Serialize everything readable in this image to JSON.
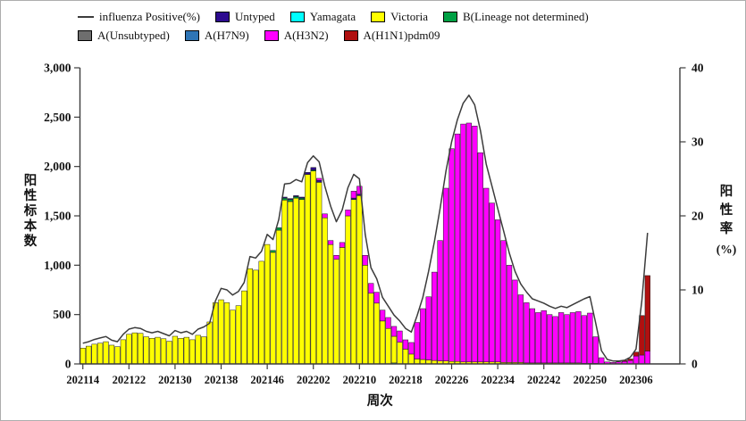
{
  "legend": {
    "row1": [
      {
        "key": "line",
        "label": "influenza Positive(%)"
      },
      {
        "key": "untyped",
        "label": "Untyped"
      },
      {
        "key": "yamagata",
        "label": "Yamagata"
      },
      {
        "key": "victoria",
        "label": "Victoria"
      },
      {
        "key": "b_nd",
        "label": "B(Lineage not determined)"
      }
    ],
    "row2": [
      {
        "key": "a_unsubtyped",
        "label": "A(Unsubtyped)"
      },
      {
        "key": "h7n9",
        "label": "A(H7N9)"
      },
      {
        "key": "h3n2",
        "label": "A(H3N2)"
      },
      {
        "key": "h1n1",
        "label": "A(H1N1)pdm09"
      }
    ]
  },
  "axes": {
    "left": {
      "title": "阳性标本数",
      "ticks": [
        0,
        500,
        1000,
        1500,
        2000,
        2500,
        3000
      ],
      "tick_labels": [
        "0",
        "500",
        "1,000",
        "1,500",
        "2,000",
        "2,500",
        "3,000"
      ]
    },
    "right": {
      "title_chars": [
        "阳",
        "性",
        "率"
      ],
      "title_unit": "(%)",
      "ticks": [
        0,
        10,
        20,
        30,
        40
      ],
      "tick_labels": [
        "0",
        "10",
        "20",
        "30",
        "40"
      ]
    },
    "x": {
      "title": "周次",
      "tick_indices": [
        0,
        8,
        16,
        24,
        32,
        40,
        48,
        56,
        64,
        72,
        80,
        88,
        96
      ],
      "tick_labels": [
        "202114",
        "202122",
        "202130",
        "202138",
        "202146",
        "202202",
        "202210",
        "202218",
        "202226",
        "202234",
        "202242",
        "202250",
        "202306"
      ]
    }
  },
  "chart_data": {
    "type": "combo_stacked_bar_line",
    "title": "",
    "xlabel": "周次",
    "ylabel_left": "阳性标本数",
    "ylabel_right": "阳性率(%)",
    "ylim_left": [
      0,
      3000
    ],
    "ylim_right": [
      0,
      40
    ],
    "grid": false,
    "legend_position": "top-left",
    "x_weeks": [
      "202114",
      "202115",
      "202116",
      "202117",
      "202118",
      "202119",
      "202120",
      "202121",
      "202122",
      "202123",
      "202124",
      "202125",
      "202126",
      "202127",
      "202128",
      "202129",
      "202130",
      "202131",
      "202132",
      "202133",
      "202134",
      "202135",
      "202136",
      "202137",
      "202138",
      "202139",
      "202140",
      "202141",
      "202142",
      "202143",
      "202144",
      "202145",
      "202146",
      "202147",
      "202148",
      "202149",
      "202150",
      "202151",
      "202152",
      "202201",
      "202202",
      "202203",
      "202204",
      "202205",
      "202206",
      "202207",
      "202208",
      "202209",
      "202210",
      "202211",
      "202212",
      "202213",
      "202214",
      "202215",
      "202216",
      "202217",
      "202218",
      "202219",
      "202220",
      "202221",
      "202222",
      "202223",
      "202224",
      "202225",
      "202226",
      "202227",
      "202228",
      "202229",
      "202230",
      "202231",
      "202232",
      "202233",
      "202234",
      "202235",
      "202236",
      "202237",
      "202238",
      "202239",
      "202240",
      "202241",
      "202242",
      "202243",
      "202244",
      "202245",
      "202246",
      "202247",
      "202248",
      "202249",
      "202250",
      "202251",
      "202252",
      "202301",
      "202302",
      "202303",
      "202304",
      "202305",
      "202306",
      "202307",
      "202308"
    ],
    "bar_series": [
      {
        "key": "yamagata",
        "name": "Yamagata",
        "color": "#00FFFF",
        "values": [
          0,
          0,
          0,
          0,
          0,
          0,
          0,
          0,
          0,
          0,
          0,
          0,
          0,
          0,
          0,
          0,
          0,
          0,
          0,
          0,
          0,
          0,
          0,
          0,
          0,
          0,
          0,
          0,
          0,
          0,
          0,
          0,
          0,
          0,
          0,
          0,
          0,
          0,
          0,
          0,
          0,
          0,
          0,
          0,
          0,
          0,
          0,
          0,
          0,
          0,
          0,
          0,
          0,
          0,
          10,
          0,
          0,
          0,
          0,
          0,
          0,
          0,
          0,
          0,
          0,
          0,
          0,
          0,
          0,
          0,
          0,
          0,
          0,
          0,
          0,
          0,
          0,
          0,
          0,
          0,
          0,
          0,
          0,
          0,
          0,
          0,
          0,
          0,
          0,
          0,
          0,
          0,
          0,
          0,
          0,
          0,
          0,
          0,
          0
        ]
      },
      {
        "key": "victoria",
        "name": "Victoria",
        "color": "#FFFF00",
        "values": [
          160,
          180,
          200,
          210,
          225,
          190,
          175,
          245,
          300,
          315,
          310,
          275,
          260,
          270,
          255,
          230,
          280,
          260,
          270,
          245,
          290,
          275,
          425,
          620,
          650,
          620,
          545,
          590,
          740,
          965,
          950,
          1040,
          1210,
          1130,
          1355,
          1660,
          1645,
          1680,
          1665,
          1920,
          1955,
          1840,
          1480,
          1210,
          1060,
          1180,
          1500,
          1665,
          1705,
          1000,
          716,
          616,
          435,
          360,
          270,
          220,
          150,
          100,
          50,
          45,
          40,
          35,
          30,
          30,
          25,
          25,
          20,
          20,
          20,
          20,
          20,
          20,
          20,
          15,
          15,
          15,
          15,
          10,
          10,
          10,
          10,
          10,
          10,
          10,
          10,
          10,
          10,
          5,
          5,
          5,
          0,
          0,
          0,
          0,
          0,
          0,
          0,
          0,
          0
        ]
      },
      {
        "key": "b_nd",
        "name": "B(Lineage not determined)",
        "color": "#00A044",
        "values": [
          0,
          0,
          0,
          0,
          0,
          0,
          0,
          0,
          0,
          0,
          0,
          0,
          0,
          0,
          0,
          0,
          0,
          0,
          0,
          0,
          0,
          0,
          0,
          0,
          0,
          0,
          0,
          0,
          0,
          0,
          0,
          0,
          0,
          20,
          25,
          20,
          20,
          15,
          15,
          0,
          10,
          0,
          0,
          0,
          0,
          0,
          0,
          0,
          0,
          0,
          0,
          0,
          0,
          0,
          0,
          0,
          0,
          0,
          0,
          0,
          0,
          0,
          0,
          0,
          0,
          0,
          0,
          0,
          0,
          0,
          0,
          0,
          0,
          0,
          0,
          0,
          0,
          0,
          0,
          0,
          0,
          0,
          0,
          0,
          0,
          0,
          0,
          0,
          0,
          0,
          0,
          0,
          0,
          0,
          0,
          0,
          0,
          0,
          0
        ]
      },
      {
        "key": "untyped",
        "name": "Untyped",
        "color": "#2D0B8F",
        "values": [
          0,
          0,
          0,
          0,
          0,
          0,
          0,
          0,
          0,
          0,
          0,
          0,
          0,
          0,
          0,
          0,
          0,
          0,
          0,
          0,
          0,
          0,
          0,
          0,
          0,
          0,
          0,
          0,
          0,
          0,
          0,
          0,
          0,
          0,
          0,
          10,
          10,
          10,
          10,
          20,
          25,
          20,
          0,
          0,
          0,
          0,
          0,
          15,
          15,
          0,
          0,
          0,
          0,
          0,
          0,
          0,
          0,
          0,
          0,
          0,
          0,
          0,
          0,
          0,
          0,
          0,
          0,
          0,
          0,
          0,
          0,
          0,
          0,
          0,
          0,
          0,
          0,
          0,
          0,
          0,
          0,
          0,
          0,
          0,
          0,
          0,
          0,
          0,
          0,
          0,
          0,
          0,
          0,
          0,
          0,
          0,
          0,
          0,
          0
        ]
      },
      {
        "key": "a_unsubtyped",
        "name": "A(Unsubtyped)",
        "color": "#6E6E6E",
        "values": [
          0,
          0,
          0,
          0,
          0,
          0,
          0,
          0,
          0,
          0,
          0,
          0,
          0,
          0,
          0,
          0,
          0,
          0,
          0,
          0,
          0,
          0,
          0,
          0,
          0,
          0,
          0,
          0,
          0,
          0,
          0,
          0,
          0,
          0,
          0,
          0,
          0,
          0,
          0,
          0,
          0,
          0,
          0,
          0,
          0,
          0,
          0,
          0,
          0,
          0,
          0,
          0,
          0,
          0,
          0,
          0,
          0,
          0,
          0,
          0,
          0,
          0,
          0,
          0,
          0,
          0,
          0,
          0,
          0,
          0,
          0,
          0,
          0,
          0,
          0,
          0,
          0,
          0,
          0,
          0,
          0,
          0,
          0,
          0,
          0,
          0,
          0,
          0,
          0,
          0,
          0,
          0,
          0,
          0,
          0,
          0,
          0,
          0,
          0
        ]
      },
      {
        "key": "h7n9",
        "name": "A(H7N9)",
        "color": "#2E75B6",
        "values": [
          0,
          0,
          0,
          0,
          0,
          0,
          0,
          0,
          0,
          0,
          0,
          0,
          0,
          0,
          0,
          0,
          0,
          0,
          0,
          0,
          0,
          0,
          0,
          0,
          0,
          0,
          0,
          0,
          0,
          0,
          0,
          0,
          0,
          0,
          0,
          0,
          0,
          0,
          0,
          0,
          0,
          0,
          0,
          0,
          0,
          0,
          0,
          0,
          0,
          0,
          0,
          0,
          0,
          0,
          0,
          0,
          0,
          0,
          0,
          0,
          0,
          0,
          0,
          0,
          0,
          0,
          0,
          0,
          0,
          0,
          0,
          0,
          0,
          0,
          0,
          0,
          0,
          0,
          0,
          0,
          0,
          0,
          0,
          0,
          0,
          0,
          0,
          0,
          0,
          0,
          0,
          0,
          0,
          0,
          0,
          0,
          0,
          0,
          0
        ]
      },
      {
        "key": "h3n2",
        "name": "A(H3N2)",
        "color": "#FF00FF",
        "values": [
          0,
          0,
          0,
          0,
          0,
          0,
          0,
          0,
          0,
          0,
          0,
          0,
          0,
          0,
          0,
          0,
          0,
          0,
          0,
          0,
          0,
          0,
          0,
          0,
          0,
          0,
          0,
          0,
          0,
          0,
          0,
          0,
          0,
          0,
          0,
          0,
          0,
          0,
          0,
          0,
          0,
          20,
          40,
          40,
          40,
          50,
          60,
          70,
          80,
          100,
          100,
          110,
          110,
          110,
          100,
          114,
          94,
          117,
          370,
          515,
          640,
          895,
          1220,
          1750,
          2155,
          2305,
          2410,
          2420,
          2390,
          2120,
          1760,
          1610,
          1440,
          1235,
          985,
          835,
          685,
          610,
          550,
          510,
          530,
          490,
          470,
          510,
          490,
          510,
          520,
          485,
          510,
          270,
          63,
          20,
          15,
          20,
          25,
          35,
          80,
          90,
          130
        ]
      },
      {
        "key": "h1n1",
        "name": "A(H1N1)pdm09",
        "color": "#B01010",
        "values": [
          0,
          0,
          0,
          0,
          0,
          0,
          0,
          0,
          0,
          0,
          0,
          0,
          0,
          0,
          0,
          0,
          0,
          0,
          0,
          0,
          0,
          0,
          0,
          0,
          0,
          0,
          0,
          0,
          0,
          0,
          0,
          0,
          0,
          0,
          0,
          0,
          0,
          0,
          0,
          0,
          0,
          0,
          0,
          0,
          0,
          0,
          0,
          0,
          0,
          0,
          0,
          0,
          0,
          0,
          0,
          0,
          0,
          0,
          0,
          0,
          0,
          0,
          0,
          0,
          0,
          0,
          0,
          0,
          0,
          0,
          0,
          0,
          0,
          0,
          0,
          0,
          0,
          0,
          0,
          0,
          0,
          0,
          0,
          0,
          0,
          0,
          0,
          0,
          0,
          0,
          0,
          0,
          0,
          0,
          10,
          15,
          40,
          400,
          765
        ]
      }
    ],
    "line_series": {
      "name": "influenza Positive(%)",
      "color": "#3C3C3C",
      "axis": "right",
      "values": [
        2.8,
        3.0,
        3.3,
        3.5,
        3.7,
        3.2,
        3.0,
        4.0,
        4.7,
        4.9,
        4.8,
        4.4,
        4.2,
        4.4,
        4.1,
        3.8,
        4.5,
        4.2,
        4.4,
        4.0,
        4.7,
        5.0,
        5.5,
        8.5,
        10.2,
        10.0,
        9.3,
        9.8,
        11.0,
        14.5,
        14.3,
        15.2,
        17.5,
        16.8,
        19.5,
        24.3,
        24.4,
        24.9,
        24.6,
        27.2,
        28.1,
        27.3,
        24.0,
        21.3,
        19.2,
        20.8,
        23.8,
        25.6,
        25.0,
        17.5,
        13.0,
        11.5,
        9.0,
        7.8,
        6.6,
        5.8,
        4.8,
        4.3,
        6.5,
        9.0,
        12.5,
        16.5,
        21.0,
        26.0,
        30.0,
        33.0,
        35.2,
        36.3,
        35.0,
        31.5,
        27.0,
        24.0,
        21.0,
        18.0,
        15.0,
        12.5,
        10.8,
        9.7,
        8.8,
        8.5,
        8.2,
        7.8,
        7.5,
        7.8,
        7.6,
        8.0,
        8.4,
        8.8,
        9.1,
        5.5,
        1.8,
        0.6,
        0.4,
        0.4,
        0.5,
        0.9,
        2.0,
        8.5,
        17.7
      ]
    }
  },
  "style": {
    "bar_stroke": "#1A1A1A",
    "axis_color": "#3C3C3C",
    "text_color": "#111111"
  }
}
